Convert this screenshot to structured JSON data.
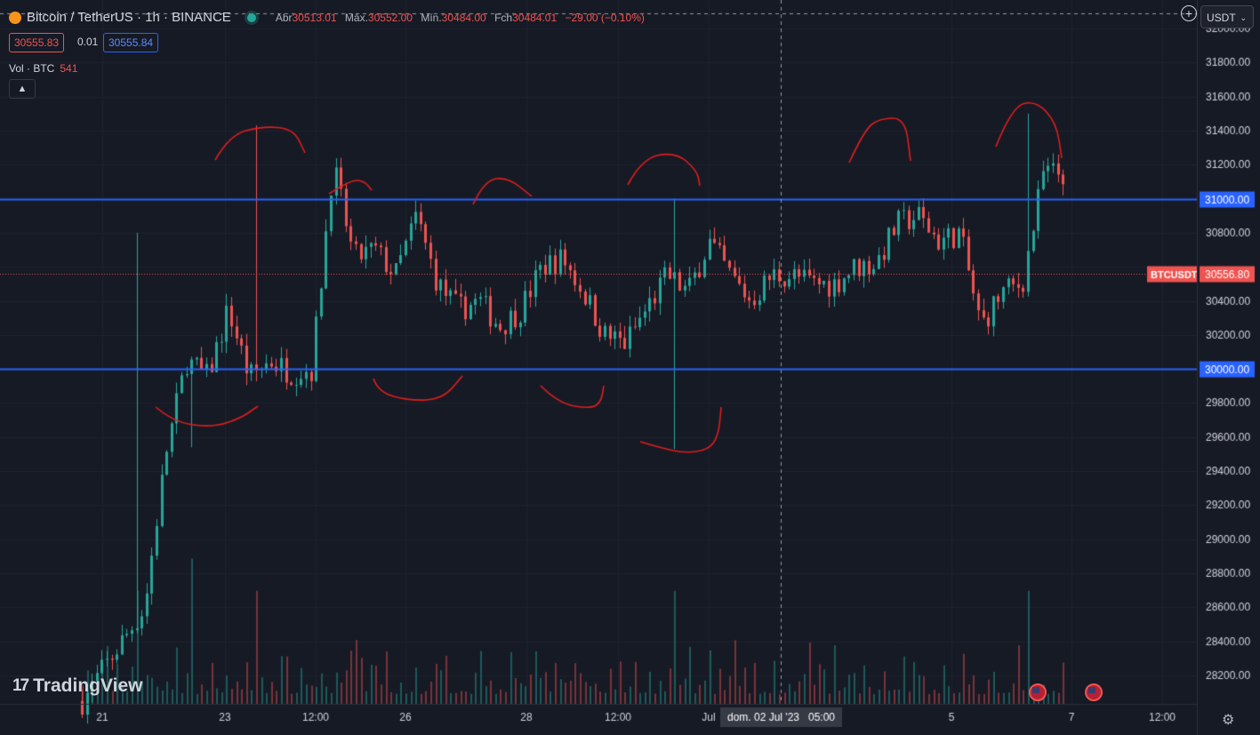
{
  "header": {
    "symbol": "Bitcoin / TetherUS · 1h · BINANCE",
    "open_label": "Abr",
    "open": "30513.01",
    "high_label": "Máx.",
    "high": "30552.00",
    "low_label": "Mín.",
    "low": "30484.00",
    "close_label": "Fch",
    "close": "30484.01",
    "change": "−29.00 (−0.10%)",
    "bid": "30555.83",
    "spread": "0.01",
    "ask": "30555.84"
  },
  "volume_indicator": {
    "label": "Vol · BTC",
    "value": "541"
  },
  "currency_selector": "USDT",
  "crosshair_time_label": "dom. 02 Jul '23   05:00",
  "logo_text": "TradingView",
  "colors": {
    "background": "#161a25",
    "up": "#26a69a",
    "down": "#ef5350",
    "level_line": "#2962ff",
    "grid": "#1f2330",
    "annotation": "#e01e1e"
  },
  "icons": [
    "plus-circle-icon",
    "chevron-down-icon",
    "chevron-up-icon",
    "gear-icon",
    "us-flag-icon",
    "tradingview-logo-icon"
  ],
  "chart_data": {
    "type": "candlestick",
    "y_axis_ticks": [
      28200,
      28400,
      28600,
      28800,
      29000,
      29200,
      29400,
      29600,
      29800,
      30000,
      30200,
      30400,
      30600,
      30800,
      31000,
      31200,
      31400,
      31600,
      31800,
      32000
    ],
    "ylim": [
      28020,
      32040
    ],
    "x_axis_ticks": [
      "21",
      "23",
      "12:00",
      "26",
      "28",
      "12:00",
      "Jul",
      "5",
      "7",
      "12:00"
    ],
    "horizontal_levels": [
      {
        "price": 31000,
        "label": "31000.00"
      },
      {
        "price": 30000,
        "label": "30000.00"
      }
    ],
    "last_price": {
      "label": "BTCUSDT",
      "price": 30556.8,
      "price_label": "30556.80"
    },
    "close_path": [
      [
        0,
        28050
      ],
      [
        3,
        28600
      ],
      [
        4,
        29500
      ],
      [
        5,
        30050
      ],
      [
        6,
        29950
      ],
      [
        7,
        30350
      ],
      [
        8,
        29950
      ],
      [
        9,
        30050
      ],
      [
        10,
        29980
      ],
      [
        11,
        30000
      ],
      [
        12,
        31200
      ],
      [
        13,
        30650
      ],
      [
        14,
        30700
      ],
      [
        15,
        30550
      ],
      [
        16,
        30900
      ],
      [
        17,
        30500
      ],
      [
        18,
        30350
      ],
      [
        19,
        30400
      ],
      [
        20,
        30250
      ],
      [
        21,
        30350
      ],
      [
        22,
        30600
      ],
      [
        23,
        30650
      ],
      [
        24,
        30450
      ],
      [
        25,
        30200
      ],
      [
        26,
        30150
      ],
      [
        27,
        30350
      ],
      [
        28,
        30550
      ],
      [
        29,
        30450
      ],
      [
        30,
        30750
      ],
      [
        31,
        30550
      ],
      [
        32,
        30400
      ],
      [
        33,
        30550
      ],
      [
        34,
        30550
      ],
      [
        35,
        30500
      ],
      [
        36,
        30500
      ],
      [
        37,
        30600
      ],
      [
        38,
        30620
      ],
      [
        39,
        30850
      ],
      [
        40,
        30900
      ],
      [
        41,
        30750
      ],
      [
        42,
        30800
      ],
      [
        43,
        30250
      ],
      [
        44,
        30450
      ],
      [
        45,
        30500
      ],
      [
        46,
        31150
      ]
    ],
    "volume_range": [
      0,
      1100
    ]
  }
}
